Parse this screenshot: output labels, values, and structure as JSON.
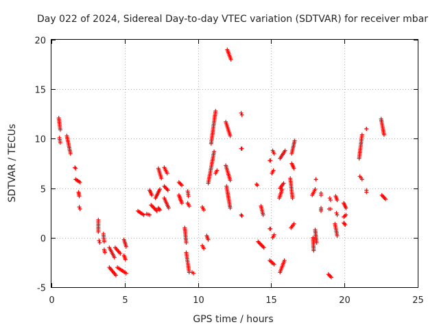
{
  "chart_data": {
    "type": "scatter",
    "title": "Day 022 of 2024, Sidereal Day-to-day VTEC variation (SDTVAR) for receiver mbar",
    "xlabel": "GPS time / hours",
    "ylabel": "SDTVAR / TECUs",
    "xlim": [
      0,
      25
    ],
    "ylim": [
      -5,
      20
    ],
    "xticks": [
      0,
      5,
      10,
      15,
      20,
      25
    ],
    "yticks": [
      -5,
      0,
      5,
      10,
      15,
      20
    ],
    "xtick_labels": [
      "0",
      "5",
      "10",
      "15",
      "20",
      "25"
    ],
    "ytick_labels": [
      "-5",
      "0",
      "5",
      "10",
      "15",
      "20"
    ],
    "grid": true,
    "marker": "+",
    "color": "#ff0000",
    "series": [
      {
        "name": "SDTVAR",
        "segments": [
          [
            0.5,
            12.1,
            0.6,
            10.9
          ],
          [
            0.55,
            10.1,
            0.6,
            9.6
          ],
          [
            1.05,
            10.3,
            1.3,
            8.5
          ],
          [
            1.6,
            7.1,
            1.65,
            7.0
          ],
          [
            1.65,
            5.9,
            1.95,
            5.6
          ],
          [
            1.85,
            4.6,
            1.9,
            4.2
          ],
          [
            1.9,
            3.1,
            1.95,
            2.9
          ],
          [
            3.2,
            1.8,
            3.2,
            0.6
          ],
          [
            3.25,
            -0.3,
            3.3,
            -0.5
          ],
          [
            3.55,
            0.4,
            3.6,
            -0.4
          ],
          [
            3.6,
            -1.2,
            3.65,
            -1.5
          ],
          [
            3.95,
            -1.0,
            4.3,
            -2.0
          ],
          [
            3.95,
            -3.0,
            4.4,
            -3.8
          ],
          [
            4.35,
            -1.0,
            4.7,
            -1.6
          ],
          [
            4.5,
            -3.0,
            5.1,
            -3.6
          ],
          [
            4.95,
            -0.2,
            5.1,
            -0.9
          ],
          [
            4.95,
            -1.8,
            5.05,
            -2.2
          ],
          [
            5.9,
            2.7,
            6.3,
            2.3
          ],
          [
            6.5,
            2.4,
            6.7,
            2.3
          ],
          [
            6.7,
            4.8,
            6.85,
            4.3
          ],
          [
            6.8,
            3.3,
            7.2,
            2.7
          ],
          [
            7.1,
            4.0,
            7.4,
            4.9
          ],
          [
            7.3,
            7.0,
            7.5,
            6.0
          ],
          [
            7.3,
            3.0,
            7.4,
            2.8
          ],
          [
            7.7,
            7.1,
            7.9,
            6.5
          ],
          [
            7.7,
            5.2,
            7.95,
            4.8
          ],
          [
            7.7,
            4.0,
            8.0,
            3.0
          ],
          [
            8.7,
            5.6,
            8.9,
            5.3
          ],
          [
            8.7,
            4.3,
            8.9,
            3.5
          ],
          [
            9.1,
            1.0,
            9.2,
            -0.5
          ],
          [
            9.2,
            -1.5,
            9.4,
            -3.5
          ],
          [
            9.3,
            4.7,
            9.35,
            4.2
          ],
          [
            9.3,
            3.5,
            9.4,
            3.2
          ],
          [
            9.6,
            -3.5,
            9.7,
            -3.6
          ],
          [
            10.3,
            3.1,
            10.4,
            2.8
          ],
          [
            10.3,
            -0.8,
            10.4,
            -1.1
          ],
          [
            10.6,
            0.2,
            10.7,
            -0.2
          ],
          [
            10.7,
            5.5,
            11.1,
            8.7
          ],
          [
            10.9,
            9.5,
            11.2,
            12.8
          ],
          [
            11.3,
            6.8,
            11.2,
            6.5
          ],
          [
            11.9,
            11.7,
            12.2,
            10.3
          ],
          [
            11.9,
            7.3,
            12.2,
            5.8
          ],
          [
            11.95,
            5.2,
            12.2,
            3.0
          ],
          [
            12.0,
            19.0,
            12.25,
            18.0
          ],
          [
            12.95,
            12.6,
            13.0,
            12.4
          ],
          [
            12.95,
            9.0,
            13.0,
            9.0
          ],
          [
            12.95,
            2.3,
            13.0,
            2.2
          ],
          [
            14.0,
            5.4,
            14.05,
            5.3
          ],
          [
            14.1,
            -0.4,
            14.5,
            -1.0
          ],
          [
            14.3,
            3.2,
            14.45,
            2.3
          ],
          [
            14.9,
            7.8,
            14.95,
            7.8
          ],
          [
            14.9,
            0.9,
            14.95,
            0.9
          ],
          [
            14.9,
            -2.3,
            15.2,
            -2.7
          ],
          [
            15.1,
            8.8,
            15.2,
            8.5
          ],
          [
            15.05,
            6.5,
            15.15,
            6.8
          ],
          [
            15.1,
            0.0,
            15.2,
            0.3
          ],
          [
            15.6,
            5.0,
            15.85,
            5.5
          ],
          [
            15.55,
            4.0,
            15.75,
            4.9
          ],
          [
            15.6,
            8.0,
            15.95,
            8.8
          ],
          [
            15.6,
            -3.5,
            15.9,
            -2.3
          ],
          [
            16.3,
            6.0,
            16.45,
            4.0
          ],
          [
            16.4,
            8.5,
            16.6,
            9.8
          ],
          [
            16.4,
            7.5,
            16.55,
            7.0
          ],
          [
            16.35,
            1.0,
            16.55,
            1.4
          ],
          [
            17.8,
            4.3,
            18.0,
            4.9
          ],
          [
            17.85,
            0.0,
            17.9,
            -1.3
          ],
          [
            18.0,
            0.8,
            18.1,
            -0.5
          ],
          [
            18.05,
            5.9,
            18.05,
            5.9
          ],
          [
            18.4,
            4.5,
            18.4,
            4.3
          ],
          [
            18.4,
            3.0,
            18.4,
            2.7
          ],
          [
            18.9,
            -3.7,
            19.1,
            -4.0
          ],
          [
            19.0,
            4.0,
            19.05,
            3.8
          ],
          [
            18.95,
            2.9,
            19.05,
            2.9
          ],
          [
            19.4,
            4.2,
            19.5,
            3.8
          ],
          [
            19.35,
            1.4,
            19.5,
            0.2
          ],
          [
            19.45,
            2.5,
            19.5,
            2.3
          ],
          [
            19.95,
            3.5,
            20.1,
            3.0
          ],
          [
            19.95,
            2.1,
            20.1,
            2.3
          ],
          [
            19.95,
            1.5,
            20.05,
            1.3
          ],
          [
            21.0,
            8.0,
            21.2,
            10.4
          ],
          [
            21.05,
            6.2,
            21.2,
            5.9
          ],
          [
            21.5,
            11.0,
            21.5,
            11.0
          ],
          [
            21.5,
            4.8,
            21.5,
            4.6
          ],
          [
            22.5,
            12.0,
            22.7,
            10.4
          ],
          [
            22.55,
            4.3,
            22.8,
            3.9
          ]
        ]
      }
    ]
  }
}
